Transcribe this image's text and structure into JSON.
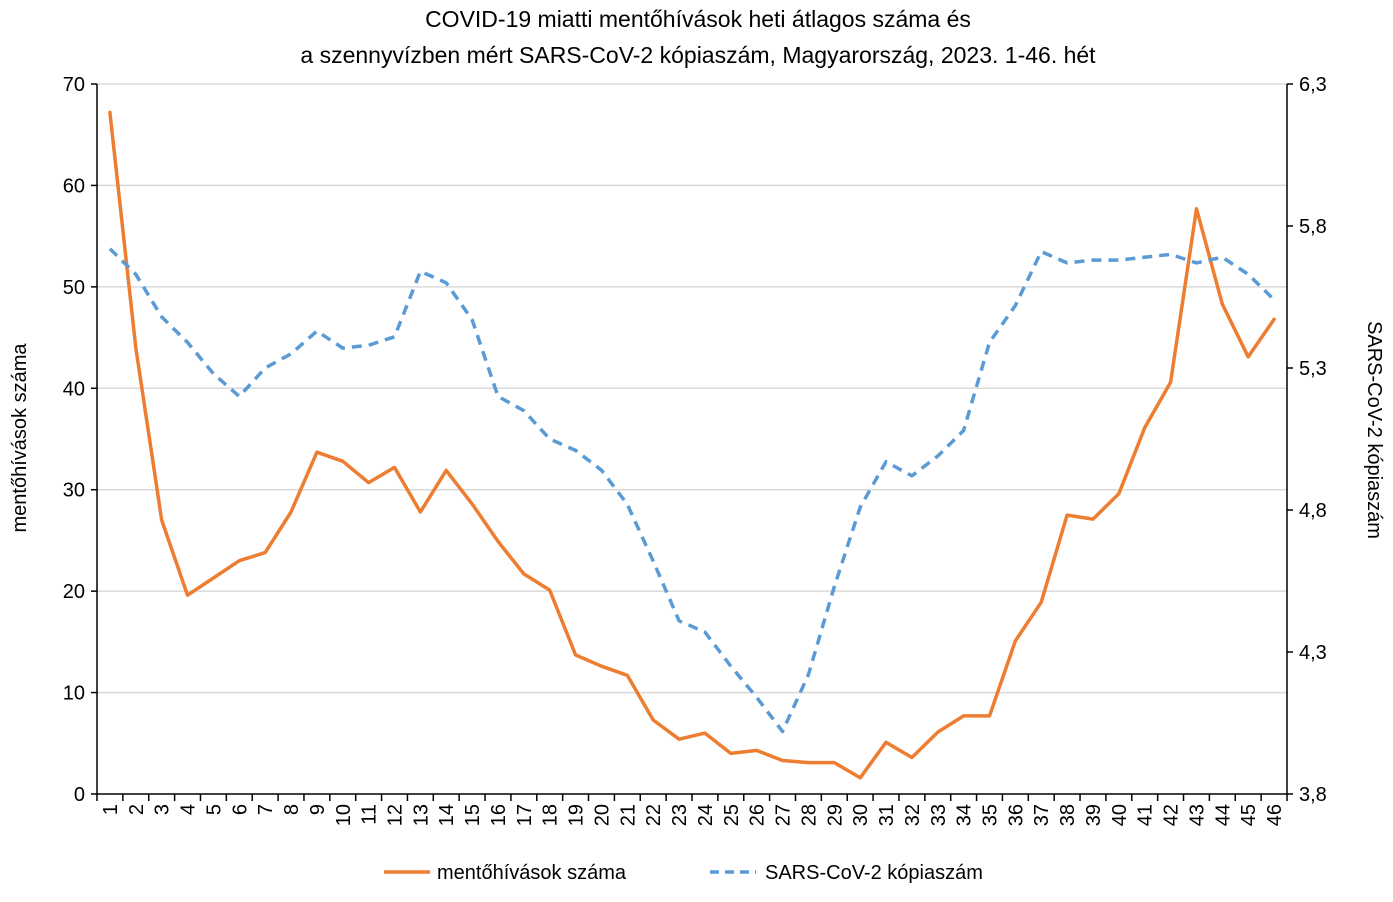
{
  "chart_data": {
    "type": "line",
    "title_lines": [
      "COVID-19 miatti mentőhívások heti átlagos száma és",
      "a szennyvízben mért SARS-CoV-2 kópiaszám, Magyarország, 2023. 1-46. hét"
    ],
    "ylabel_left": "mentőhívások száma",
    "ylabel_right": "SARS-CoV-2 kópiaszám",
    "ylim_left": [
      0,
      70
    ],
    "yticks_left": [
      "0",
      "10",
      "20",
      "30",
      "40",
      "50",
      "60",
      "70"
    ],
    "ylim_right": [
      3.8,
      6.3
    ],
    "yticks_right": [
      "3,8",
      "4,3",
      "4,8",
      "5,3",
      "5,8",
      "6,3"
    ],
    "categories": [
      "1",
      "2",
      "3",
      "4",
      "5",
      "6",
      "7",
      "8",
      "9",
      "10",
      "11",
      "12",
      "13",
      "14",
      "15",
      "16",
      "17",
      "18",
      "19",
      "20",
      "21",
      "22",
      "23",
      "24",
      "25",
      "26",
      "27",
      "28",
      "29",
      "30",
      "31",
      "32",
      "33",
      "34",
      "35",
      "36",
      "37",
      "38",
      "39",
      "40",
      "41",
      "42",
      "43",
      "44",
      "45",
      "46"
    ],
    "series": [
      {
        "name": "mentőhívások száma",
        "axis": "left",
        "color": "#ED7D31",
        "style": "solid",
        "values": [
          67.2,
          44,
          27,
          19.6,
          21.3,
          23,
          23.8,
          27.8,
          33.7,
          32.8,
          30.7,
          32.2,
          27.8,
          31.9,
          28.6,
          24.9,
          21.7,
          20.1,
          13.7,
          12.6,
          11.7,
          7.3,
          5.4,
          6,
          4,
          4.3,
          3.3,
          3.1,
          3.1,
          1.6,
          5.1,
          3.6,
          6.1,
          7.7,
          7.7,
          15.1,
          18.9,
          27.5,
          27.1,
          29.6,
          36.1,
          40.6,
          57.7,
          48.3,
          43.1,
          46.8
        ]
      },
      {
        "name": "SARS-CoV-2 kópiaszám",
        "axis": "right",
        "color": "#5B9BD5",
        "style": "dashed",
        "values": [
          5.72,
          5.63,
          5.48,
          5.39,
          5.28,
          5.2,
          5.3,
          5.35,
          5.43,
          5.37,
          5.38,
          5.41,
          5.64,
          5.6,
          5.47,
          5.2,
          5.15,
          5.05,
          5.01,
          4.94,
          4.82,
          4.62,
          4.41,
          4.37,
          4.25,
          4.14,
          4.02,
          4.22,
          4.53,
          4.81,
          4.97,
          4.92,
          4.99,
          5.08,
          5.39,
          5.52,
          5.71,
          5.67,
          5.68,
          5.68,
          5.69,
          5.7,
          5.67,
          5.69,
          5.63,
          5.54
        ]
      }
    ],
    "grid": "horizontal",
    "legend_position": "bottom-center"
  }
}
